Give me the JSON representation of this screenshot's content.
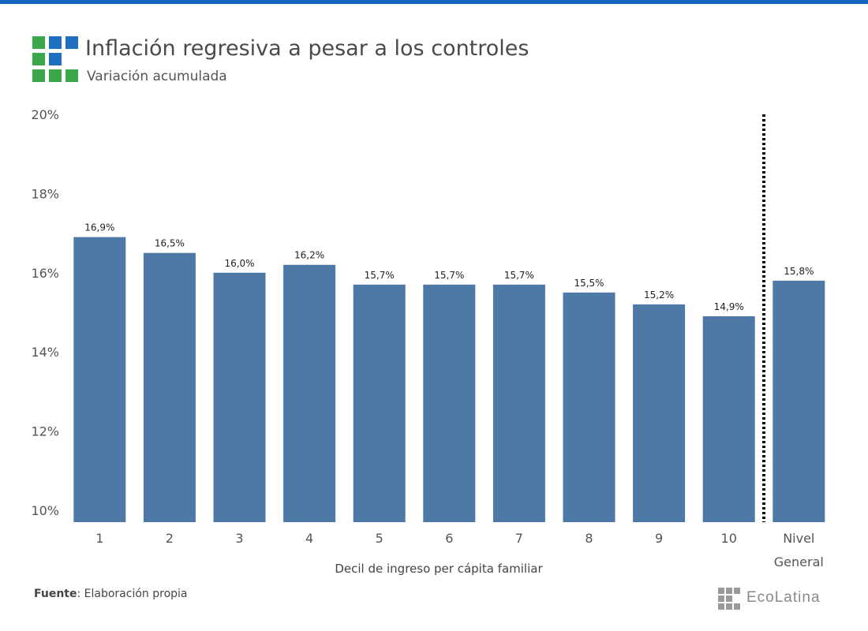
{
  "header": {
    "title": "Inflación regresiva a pesar a los controles",
    "subtitle": "Variación acumulada"
  },
  "colors": {
    "bar": "#4e78a6",
    "top_rule": "#1565c0",
    "logo_blue": "#1f6fc0",
    "logo_green": "#3aa84a"
  },
  "chart_data": {
    "type": "bar",
    "categories": [
      "1",
      "2",
      "3",
      "4",
      "5",
      "6",
      "7",
      "8",
      "9",
      "10",
      "Nivel General"
    ],
    "values": [
      16.9,
      16.5,
      16.0,
      16.2,
      15.7,
      15.7,
      15.7,
      15.5,
      15.2,
      14.9,
      15.8
    ],
    "value_labels": [
      "16,9%",
      "16,5%",
      "16,0%",
      "16,2%",
      "15,7%",
      "15,7%",
      "15,7%",
      "15,5%",
      "15,2%",
      "14,9%",
      "15,8%"
    ],
    "y_ticks": [
      10,
      12,
      14,
      16,
      18,
      20
    ],
    "y_tick_labels": [
      "10%",
      "12%",
      "14%",
      "16%",
      "18%",
      "20%"
    ],
    "ylim": [
      9.7,
      20
    ],
    "xlabel": "Decil de ingreso per cápita familiar",
    "ylabel": "",
    "grid": false,
    "separator": "dashed vertical line between 10 and Nivel General"
  },
  "footer": {
    "source_label": "Fuente",
    "source_text": ": Elaboración propia"
  },
  "brand": {
    "name": "EcoLatina"
  }
}
